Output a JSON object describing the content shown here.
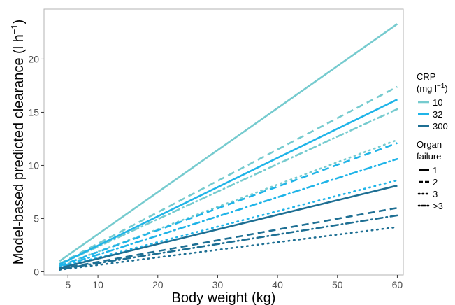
{
  "chart_data": {
    "type": "line",
    "xlabel": "Body weight (kg)",
    "ylabel": "Model-based predicted clearance (l h",
    "ylabel_sup": "−1",
    "ylabel_close": ")",
    "x_ticks": [
      5,
      10,
      20,
      30,
      40,
      50,
      60
    ],
    "y_ticks": [
      0,
      5,
      10,
      15,
      20
    ],
    "xlim": [
      1,
      61
    ],
    "ylim": [
      -0.3,
      24.7
    ],
    "grid": false,
    "x": [
      3.6,
      60
    ],
    "legend_placement": "right",
    "legend": {
      "crp_title_line1": "CRP",
      "crp_title_line2": "(mg l",
      "crp_title_sup": "−1",
      "crp_title_close": ")",
      "crp_levels": [
        {
          "label": "10",
          "color": "#76cbcf"
        },
        {
          "label": "32",
          "color": "#1fb4e8"
        },
        {
          "label": "300",
          "color": "#1e6f93"
        }
      ],
      "organ_title_line1": "Organ",
      "organ_title_line2": "failure",
      "organ_levels": [
        {
          "label": "1",
          "dash": "solid"
        },
        {
          "label": "2",
          "dash": "dashed"
        },
        {
          "label": "3",
          "dash": "dotted"
        },
        {
          "label": ">3",
          "dash": "dotdash"
        }
      ]
    },
    "series": [
      {
        "crp": "10",
        "organ": "1",
        "color": "#76cbcf",
        "dash": "solid",
        "y": [
          1.0,
          23.3
        ]
      },
      {
        "crp": "10",
        "organ": "2",
        "color": "#76cbcf",
        "dash": "dashed",
        "y": [
          0.75,
          17.4
        ]
      },
      {
        "crp": "10",
        "organ": ">3",
        "color": "#76cbcf",
        "dash": "dotdash",
        "y": [
          0.7,
          15.3
        ]
      },
      {
        "crp": "10",
        "organ": "3",
        "color": "#76cbcf",
        "dash": "dotted",
        "y": [
          0.55,
          12.4
        ]
      },
      {
        "crp": "32",
        "organ": "1",
        "color": "#1fb4e8",
        "dash": "solid",
        "y": [
          0.7,
          16.2
        ]
      },
      {
        "crp": "32",
        "organ": "2",
        "color": "#1fb4e8",
        "dash": "dashed",
        "y": [
          0.55,
          12.1
        ]
      },
      {
        "crp": "32",
        "organ": ">3",
        "color": "#1fb4e8",
        "dash": "dotdash",
        "y": [
          0.45,
          10.6
        ]
      },
      {
        "crp": "32",
        "organ": "3",
        "color": "#1fb4e8",
        "dash": "dotted",
        "y": [
          0.4,
          8.6
        ]
      },
      {
        "crp": "300",
        "organ": "1",
        "color": "#1e6f93",
        "dash": "solid",
        "y": [
          0.35,
          8.1
        ]
      },
      {
        "crp": "300",
        "organ": "2",
        "color": "#1e6f93",
        "dash": "dashed",
        "y": [
          0.27,
          6.0
        ]
      },
      {
        "crp": "300",
        "organ": ">3",
        "color": "#1e6f93",
        "dash": "dotdash",
        "y": [
          0.23,
          5.3
        ]
      },
      {
        "crp": "300",
        "organ": "3",
        "color": "#1e6f93",
        "dash": "dotted",
        "y": [
          0.18,
          4.2
        ]
      }
    ]
  }
}
